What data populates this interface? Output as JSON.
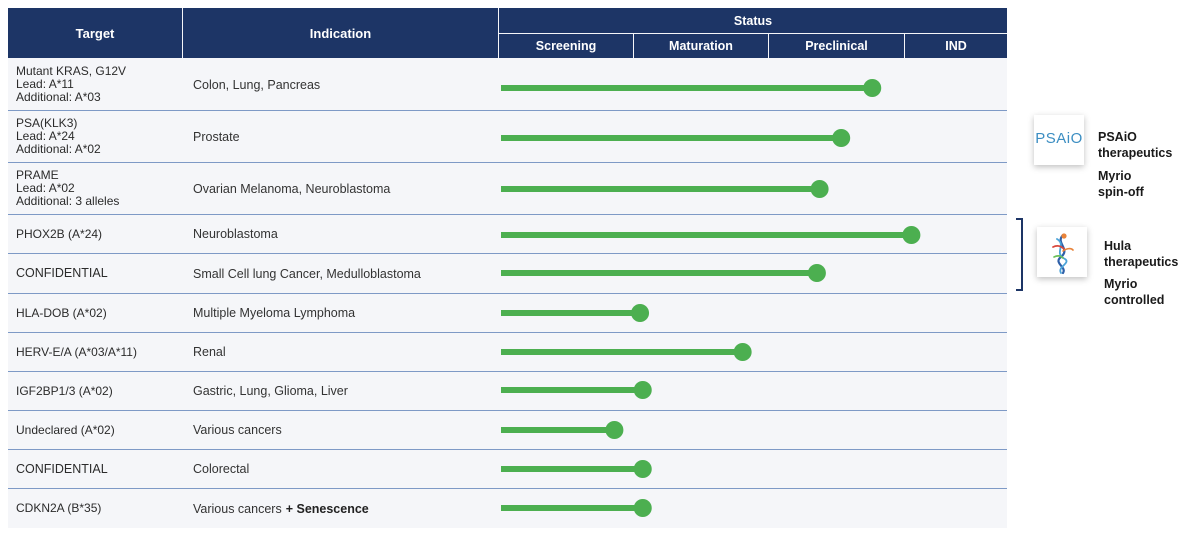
{
  "header": {
    "target": "Target",
    "indication": "Indication",
    "status": "Status",
    "stages": [
      "Screening",
      "Maturation",
      "Preclinical",
      "IND"
    ]
  },
  "rows": [
    {
      "target": [
        "Mutant KRAS, G12V",
        "Lead: A*11",
        "Additional: A*03"
      ],
      "indication": "Colon, Lung, Pancreas"
    },
    {
      "target": [
        "PSA(KLK3)",
        "Lead: A*24",
        "Additional: A*02"
      ],
      "indication": "Prostate"
    },
    {
      "target": [
        "PRAME",
        "Lead: A*02",
        "Additional: 3 alleles"
      ],
      "indication": "Ovarian Melanoma, Neuroblastoma"
    },
    {
      "target": [
        "PHOX2B (A*24)"
      ],
      "indication": "Neuroblastoma"
    },
    {
      "target": [
        "CONFIDENTIAL"
      ],
      "indication": "Small Cell lung Cancer, Medulloblastoma"
    },
    {
      "target": [
        "HLA-DOB (A*02)"
      ],
      "indication": "Multiple Myeloma Lymphoma"
    },
    {
      "target": [
        "HERV-E/A (A*03/A*11)"
      ],
      "indication": "Renal"
    },
    {
      "target": [
        "IGF2BP1/3 (A*02)"
      ],
      "indication": "Gastric, Lung, Glioma, Liver"
    },
    {
      "target": [
        "Undeclared (A*02)"
      ],
      "indication": "Various cancers"
    },
    {
      "target": [
        "CONFIDENTIAL"
      ],
      "indication": "Colorectal"
    },
    {
      "target": [
        "CDKN2A (B*35)"
      ],
      "indication": "Various cancers",
      "indication_bold": "+ Senescence"
    }
  ],
  "chart_data": {
    "type": "bar",
    "orientation": "horizontal",
    "value_unit": "pipeline stages completed (Screening=0–1, Maturation=1–2, Preclinical=2–3, IND=3–4)",
    "stages": [
      "Screening",
      "Maturation",
      "Preclinical",
      "IND"
    ],
    "xlim": [
      0,
      4
    ],
    "categories": [
      "Mutant KRAS, G12V",
      "PSA(KLK3)",
      "PRAME",
      "PHOX2B (A*24)",
      "CONFIDENTIAL",
      "HLA-DOB (A*02)",
      "HERV-E/A (A*03/A*11)",
      "IGF2BP1/3 (A*02)",
      "Undeclared (A*02)",
      "CONFIDENTIAL",
      "CDKN2A (B*35)"
    ],
    "values": [
      2.75,
      2.52,
      2.36,
      3.04,
      2.34,
      1.03,
      1.79,
      1.05,
      0.84,
      1.05,
      1.05
    ]
  },
  "partners": {
    "psaio": {
      "logo_text": "PSAiO",
      "name": [
        "PSAiO",
        "therapeutics"
      ],
      "note": [
        "Myrio",
        "spin-off"
      ]
    },
    "hula": {
      "name": [
        "Hula",
        "therapeutics"
      ],
      "note": [
        "Myrio",
        "controlled"
      ]
    }
  },
  "colors": {
    "header_bg": "#1d3566",
    "header_text": "#ffffff",
    "bar": "#4caf50",
    "row_divider": "#7e9ac6",
    "body_bg": "#f5f6f9",
    "psaio_logo": "#3c8ec2"
  }
}
